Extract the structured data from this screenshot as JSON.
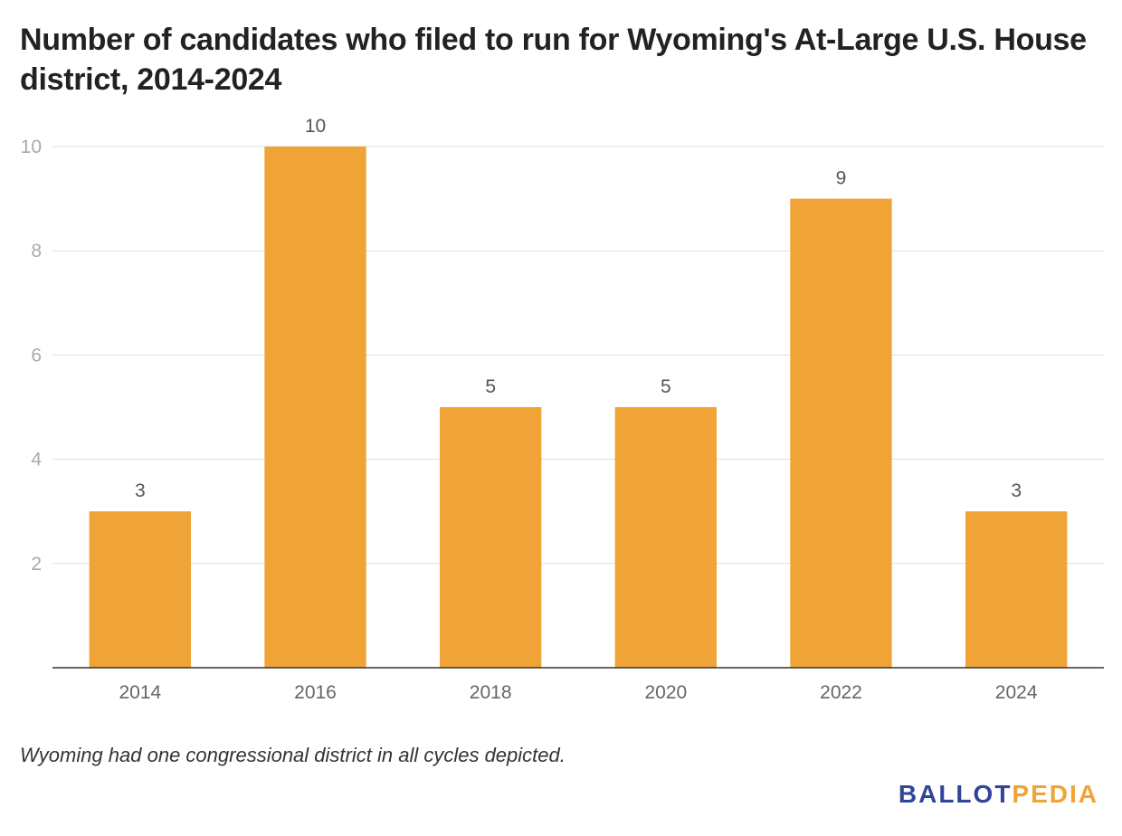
{
  "chart_data": {
    "type": "bar",
    "title": "Number of candidates who filed to run for Wyoming's At-Large U.S. House district, 2014-2024",
    "categories": [
      "2014",
      "2016",
      "2018",
      "2020",
      "2022",
      "2024"
    ],
    "values": [
      3,
      10,
      5,
      5,
      9,
      3
    ],
    "data_labels": [
      "3",
      "10",
      "5",
      "5",
      "9",
      "3"
    ],
    "yticks": [
      2,
      4,
      6,
      8,
      10
    ],
    "ylim": [
      0,
      10
    ],
    "xlabel": "",
    "ylabel": "",
    "grid": true,
    "bar_color": "#f0a336"
  },
  "note": "Wyoming had one congressional district in all cycles depicted.",
  "logo": {
    "part1": "BALLOT",
    "part2": "PEDIA",
    "color1": "#2f4597",
    "color2": "#f0a336"
  }
}
